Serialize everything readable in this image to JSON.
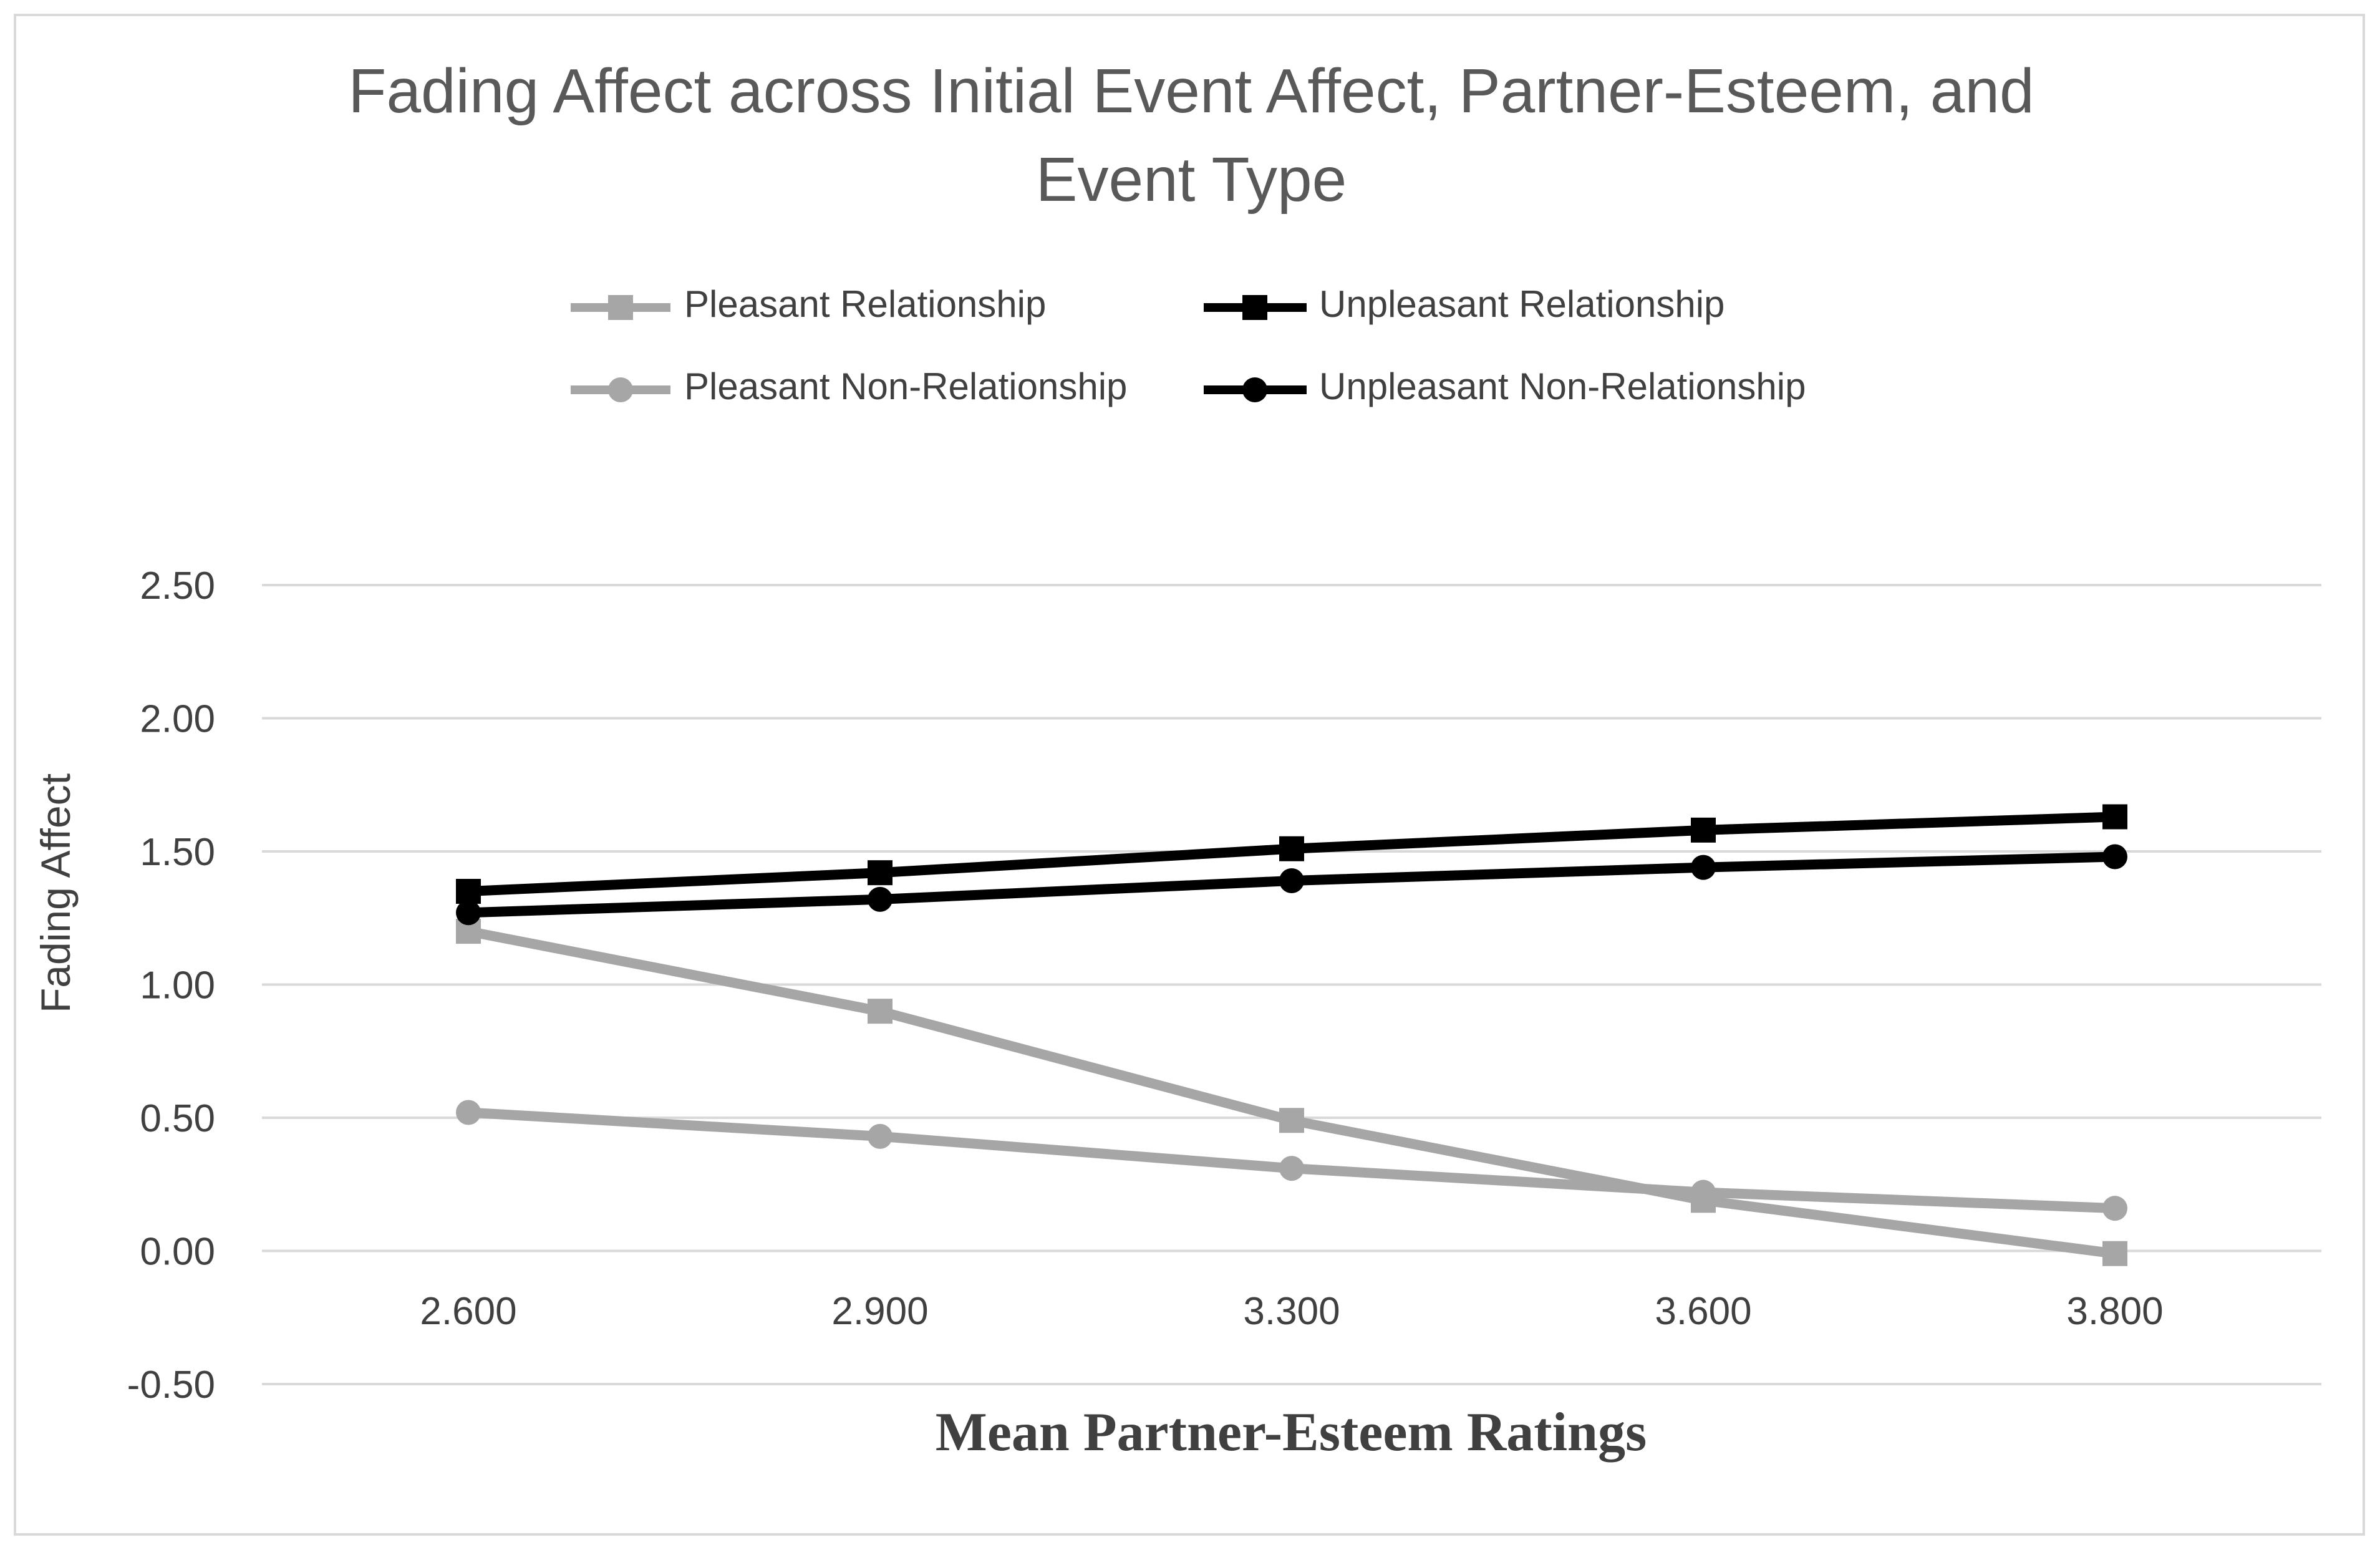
{
  "chart_data": {
    "type": "line",
    "title_lines": [
      "Fading Affect across Initial Event Affect, Partner-Esteem, and",
      "Event Type"
    ],
    "xlabel": "Mean Partner-Esteem Ratings",
    "ylabel": "Fading Affect",
    "categories": [
      "2.600",
      "2.900",
      "3.300",
      "3.600",
      "3.800"
    ],
    "ylim": [
      -0.5,
      2.5
    ],
    "yticks": [
      "-0.50",
      "0.00",
      "0.50",
      "1.00",
      "1.50",
      "2.00",
      "2.50"
    ],
    "ytick_values": [
      -0.5,
      0,
      0.5,
      1.0,
      1.5,
      2.0,
      2.5
    ],
    "grid": true,
    "legend_position": "top",
    "series": [
      {
        "name": "Pleasant Relationship",
        "marker": "square",
        "color": "#a6a6a6",
        "values": [
          1.2,
          0.9,
          0.49,
          0.19,
          -0.01
        ]
      },
      {
        "name": "Unpleasant Relationship",
        "marker": "square",
        "color": "#000000",
        "values": [
          1.35,
          1.42,
          1.51,
          1.58,
          1.63
        ]
      },
      {
        "name": "Pleasant Non-Relationship",
        "marker": "circle",
        "color": "#a6a6a6",
        "values": [
          0.52,
          0.43,
          0.31,
          0.22,
          0.16
        ]
      },
      {
        "name": "Unpleasant Non-Relationship",
        "marker": "circle",
        "color": "#000000",
        "values": [
          1.27,
          1.32,
          1.39,
          1.44,
          1.48
        ]
      }
    ]
  }
}
